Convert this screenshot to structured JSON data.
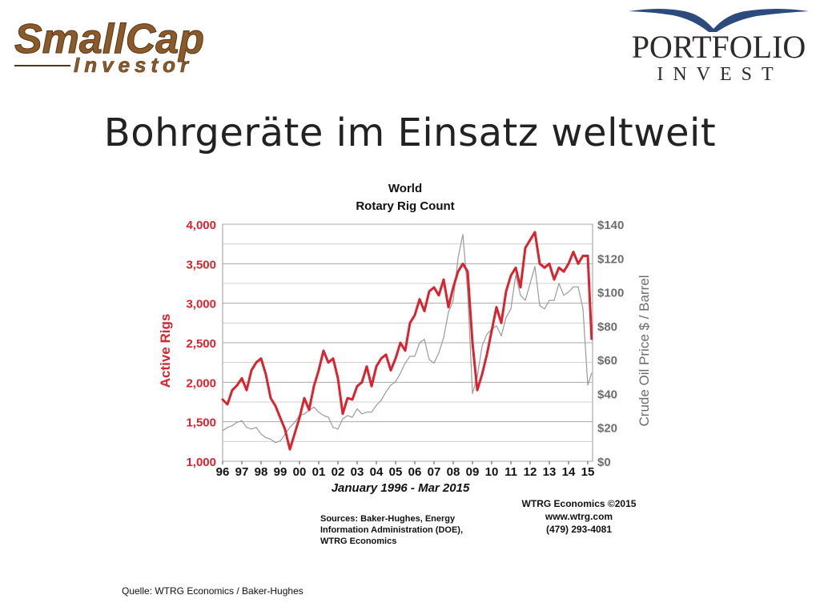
{
  "logos": {
    "smallcap_main": "SmallCap",
    "smallcap_sub": "Investor",
    "portfolio_main": "PORTFOLIO",
    "portfolio_sub": "INVEST"
  },
  "slide": {
    "title": "Bohrgeräte im Einsatz weltweit",
    "footnote": "Quelle: WTRG Economics / Baker-Hughes"
  },
  "sources": {
    "lines": [
      "Sources: Baker-Hughes, Energy",
      "Information Administration (DOE),",
      "WTRG Economics"
    ]
  },
  "credits": {
    "line1": "WTRG Economics  ©2015",
    "line2": "www.wtrg.com",
    "line3": "(479) 293-4081"
  },
  "colors": {
    "rigs": "#d9232e",
    "oil": "#9a9a9a",
    "left_axis": "#d9232e",
    "right_axis": "#6d6d6d"
  },
  "chart_data": {
    "type": "line",
    "title": "World",
    "subtitle": "Rotary Rig Count",
    "xlabel": "January 1996 - Mar 2015",
    "ylabel_left": "Active Rigs",
    "ylabel_right": "Crude Oil Price $ / Barrel",
    "xlim": [
      1996,
      2015.25
    ],
    "ylim_left": [
      1000,
      4000
    ],
    "ylim_right": [
      0,
      140
    ],
    "x_ticks": [
      "96",
      "97",
      "98",
      "99",
      "00",
      "01",
      "02",
      "03",
      "04",
      "05",
      "06",
      "07",
      "08",
      "09",
      "10",
      "11",
      "12",
      "13",
      "14",
      "15"
    ],
    "y_ticks_left": [
      "1,000",
      "1,500",
      "2,000",
      "2,500",
      "3,000",
      "3,500",
      "4,000"
    ],
    "y_ticks_right": [
      "$0",
      "$20",
      "$40",
      "$60",
      "$80",
      "$100",
      "$120",
      "$140"
    ],
    "grid": true,
    "series": [
      {
        "name": "Active Rigs",
        "axis": "left",
        "x": [
          1996.0,
          1996.25,
          1996.5,
          1996.75,
          1997.0,
          1997.25,
          1997.5,
          1997.75,
          1998.0,
          1998.25,
          1998.5,
          1998.75,
          1999.0,
          1999.25,
          1999.5,
          1999.75,
          2000.0,
          2000.25,
          2000.5,
          2000.75,
          2001.0,
          2001.25,
          2001.5,
          2001.75,
          2002.0,
          2002.25,
          2002.5,
          2002.75,
          2003.0,
          2003.25,
          2003.5,
          2003.75,
          2004.0,
          2004.25,
          2004.5,
          2004.75,
          2005.0,
          2005.25,
          2005.5,
          2005.75,
          2006.0,
          2006.25,
          2006.5,
          2006.75,
          2007.0,
          2007.25,
          2007.5,
          2007.75,
          2008.0,
          2008.25,
          2008.5,
          2008.75,
          2009.0,
          2009.25,
          2009.5,
          2009.75,
          2010.0,
          2010.25,
          2010.5,
          2010.75,
          2011.0,
          2011.25,
          2011.5,
          2011.75,
          2012.0,
          2012.25,
          2012.5,
          2012.75,
          2013.0,
          2013.25,
          2013.5,
          2013.75,
          2014.0,
          2014.25,
          2014.5,
          2014.75,
          2015.0,
          2015.2
        ],
        "values": [
          1780,
          1720,
          1900,
          1960,
          2050,
          1900,
          2150,
          2250,
          2300,
          2100,
          1800,
          1700,
          1550,
          1400,
          1150,
          1350,
          1550,
          1800,
          1650,
          1950,
          2150,
          2400,
          2250,
          2300,
          2050,
          1600,
          1800,
          1780,
          1950,
          2000,
          2200,
          1950,
          2200,
          2300,
          2350,
          2150,
          2300,
          2500,
          2400,
          2750,
          2850,
          3050,
          2900,
          3150,
          3200,
          3100,
          3300,
          2950,
          3200,
          3400,
          3500,
          3400,
          2500,
          1900,
          2100,
          2350,
          2650,
          2950,
          2750,
          3150,
          3350,
          3450,
          3200,
          3700,
          3800,
          3900,
          3500,
          3450,
          3500,
          3300,
          3450,
          3400,
          3500,
          3650,
          3500,
          3600,
          3600,
          2550
        ]
      },
      {
        "name": "Crude Oil Price",
        "axis": "right",
        "x": [
          1996.0,
          1996.25,
          1996.5,
          1996.75,
          1997.0,
          1997.25,
          1997.5,
          1997.75,
          1998.0,
          1998.25,
          1998.5,
          1998.75,
          1999.0,
          1999.25,
          1999.5,
          1999.75,
          2000.0,
          2000.25,
          2000.5,
          2000.75,
          2001.0,
          2001.25,
          2001.5,
          2001.75,
          2002.0,
          2002.25,
          2002.5,
          2002.75,
          2003.0,
          2003.25,
          2003.5,
          2003.75,
          2004.0,
          2004.25,
          2004.5,
          2004.75,
          2005.0,
          2005.25,
          2005.5,
          2005.75,
          2006.0,
          2006.25,
          2006.5,
          2006.75,
          2007.0,
          2007.25,
          2007.5,
          2007.75,
          2008.0,
          2008.25,
          2008.5,
          2008.75,
          2009.0,
          2009.25,
          2009.5,
          2009.75,
          2010.0,
          2010.25,
          2010.5,
          2010.75,
          2011.0,
          2011.25,
          2011.5,
          2011.75,
          2012.0,
          2012.25,
          2012.5,
          2012.75,
          2013.0,
          2013.25,
          2013.5,
          2013.75,
          2014.0,
          2014.25,
          2014.5,
          2014.75,
          2015.0,
          2015.2
        ],
        "values": [
          18,
          20,
          21,
          23,
          24,
          20,
          19,
          20,
          16,
          14,
          13,
          11,
          12,
          16,
          20,
          23,
          27,
          28,
          30,
          32,
          29,
          27,
          26,
          20,
          19,
          25,
          27,
          26,
          31,
          28,
          29,
          29,
          33,
          36,
          41,
          45,
          47,
          52,
          58,
          62,
          62,
          70,
          72,
          60,
          58,
          64,
          73,
          88,
          95,
          120,
          134,
          100,
          40,
          50,
          68,
          75,
          78,
          80,
          74,
          85,
          90,
          110,
          98,
          95,
          105,
          115,
          92,
          90,
          95,
          95,
          105,
          98,
          100,
          103,
          103,
          90,
          45,
          52
        ]
      }
    ]
  }
}
